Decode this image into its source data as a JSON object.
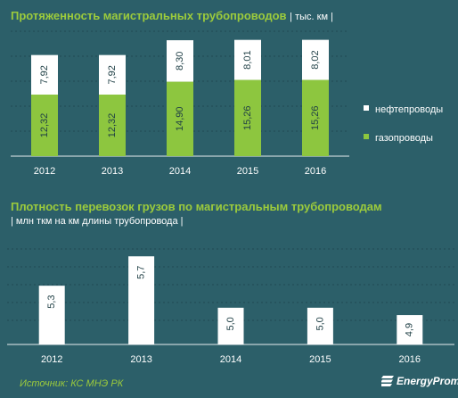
{
  "chart_data": [
    {
      "type": "bar",
      "title": "Протяженность магистральных трубопроводов",
      "unit": "| тыс. км |",
      "categories": [
        "2012",
        "2013",
        "2014",
        "2015",
        "2016"
      ],
      "stacked": true,
      "series": [
        {
          "name": "газопроводы",
          "color": "#8dc63f",
          "values": [
            12.32,
            12.32,
            14.9,
            15.26,
            15.26
          ],
          "labels": [
            "12,32",
            "12,32",
            "14,90",
            "15,26",
            "15,26"
          ]
        },
        {
          "name": "нефтепроводы",
          "color": "#ffffff",
          "values": [
            7.92,
            7.92,
            8.3,
            8.01,
            8.02
          ],
          "labels": [
            "7,92",
            "7,92",
            "8,30",
            "8,01",
            "8,02"
          ]
        }
      ],
      "legend": "right",
      "ylim": [
        0,
        25
      ],
      "grid": true
    },
    {
      "type": "bar",
      "title": "Плотность перевозок грузов по магистральным трубопроводам",
      "unit": "| млн ткм на км длины трубопровода |",
      "categories": [
        "2012",
        "2013",
        "2014",
        "2015",
        "2016"
      ],
      "series": [
        {
          "color": "#ffffff",
          "values": [
            5.3,
            5.7,
            5.0,
            5.0,
            4.9
          ],
          "labels": [
            "5,3",
            "5,7",
            "5,0",
            "5,0",
            "4,9"
          ]
        }
      ],
      "ylim": [
        4.5,
        5.8
      ],
      "grid": true
    }
  ],
  "source": "Источник: КС МНЭ РК",
  "brand": "EnergyProm"
}
